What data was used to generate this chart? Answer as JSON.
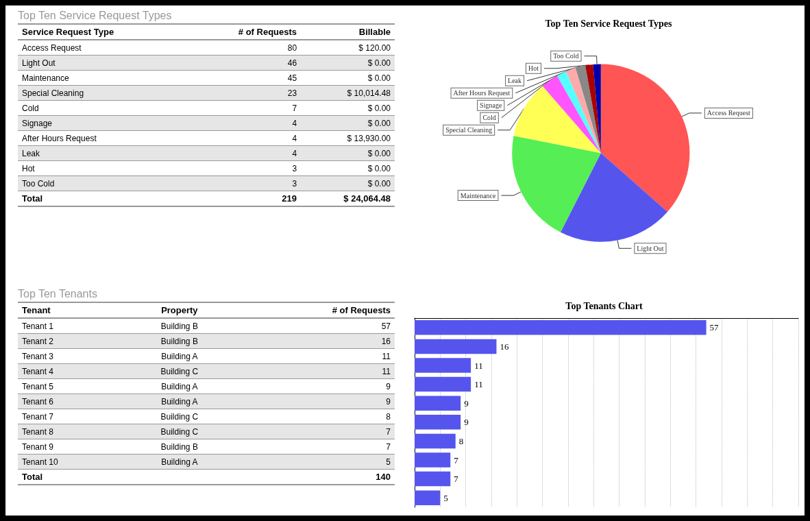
{
  "chart_data": [
    {
      "type": "other",
      "title": "Top Ten Service Request Types",
      "annotations": [
        "Service Request Type",
        "# of Requests",
        "Billable",
        "Access Request",
        "80",
        "$ 120.00",
        "Light Out",
        "46",
        "$ 0.00",
        "Maintenance",
        "45",
        "$ 0.00",
        "Special Cleaning",
        "23",
        "$ 10,014.48",
        "Cold",
        "7",
        "$ 0.00",
        "Signage",
        "4",
        "$ 0.00",
        "After Hours Request",
        "4",
        "$ 13,930.00",
        "Leak",
        "4",
        "$ 0.00",
        "Hot",
        "3",
        "$ 0.00",
        "Too Cold",
        "3",
        "$ 0.00",
        "Total",
        "219",
        "$ 24,064.48"
      ]
    },
    {
      "type": "pie",
      "title": "Top Ten Service Request Types",
      "categories": [
        "Access Request",
        "Light Out",
        "Maintenance",
        "Special Cleaning",
        "Cold",
        "Signage",
        "After Hours Request",
        "Leak",
        "Hot",
        "Too Cold"
      ],
      "values": [
        36.5,
        21.0,
        20.6,
        10.5,
        3.2,
        1.8,
        1.8,
        1.8,
        1.4,
        1.4
      ],
      "colors": [
        "#ff5555",
        "#5555ee",
        "#55ee55",
        "#ffff55",
        "#ff55ff",
        "#55ffff",
        "#ffaaaa",
        "#888888",
        "#aa0000",
        "#0000aa"
      ]
    },
    {
      "type": "other",
      "title": "Top Ten Tenants",
      "annotations": [
        "Tenant",
        "Property",
        "# of Requests",
        "Tenant 1",
        "Building B",
        "57",
        "Tenant 2",
        "Building B",
        "16",
        "Tenant 3",
        "Building A",
        "11",
        "Tenant 4",
        "Building C",
        "11",
        "Tenant 5",
        "Building A",
        "9",
        "Tenant 6",
        "Building A",
        "9",
        "Tenant 7",
        "Building C",
        "8",
        "Tenant 8",
        "Building C",
        "7",
        "Tenant 9",
        "Building B",
        "7",
        "Tenant 10",
        "Building A",
        "5",
        "Total",
        "140"
      ]
    },
    {
      "type": "bar",
      "orientation": "horizontal",
      "title": "Top Tenants Chart",
      "categories": [
        null,
        null,
        null,
        null,
        null,
        null,
        null,
        null,
        null,
        null
      ],
      "values": [
        57,
        16,
        11,
        11,
        9,
        9,
        8,
        7,
        7,
        5
      ],
      "color": "#5555ee",
      "data_labels": true,
      "grid": "x",
      "xlim": [
        0,
        75
      ],
      "xticks": [
        {
          "value": 0,
          "label": null
        },
        {
          "value": 5,
          "label": null
        },
        {
          "value": 10,
          "label": null
        },
        {
          "value": 15,
          "label": null
        },
        {
          "value": 20,
          "label": null
        },
        {
          "value": 25,
          "label": null
        },
        {
          "value": 30,
          "label": null
        },
        {
          "value": 35,
          "label": null
        },
        {
          "value": 40,
          "label": null
        },
        {
          "value": 45,
          "label": null
        },
        {
          "value": 50,
          "label": null
        },
        {
          "value": 55,
          "label": null
        },
        {
          "value": 60,
          "label": null
        },
        {
          "value": 65,
          "label": null
        },
        {
          "value": 70,
          "label": null
        },
        {
          "value": 75,
          "label": null
        }
      ]
    }
  ]
}
